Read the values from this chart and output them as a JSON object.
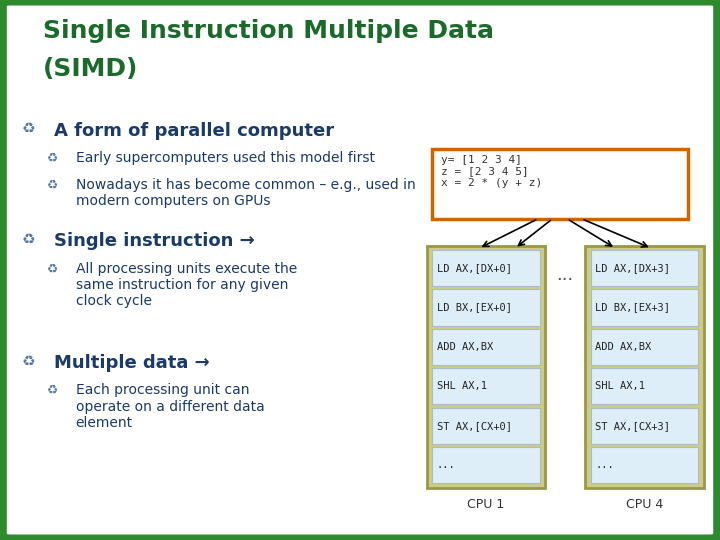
{
  "title_line1": "Single Instruction Multiple Data",
  "title_line2": "(SIMD)",
  "title_color": "#1a6b2a",
  "bg_green": "#2d8a2d",
  "slide_bg": "#ffffff",
  "slide_border": "#2d8a2d",
  "bullet_color": "#5577aa",
  "text_color": "#1a3a6a",
  "main_bullet_color": "#5577aa",
  "main_bullets": [
    "A form of parallel computer",
    "Single instruction →",
    "Multiple data →"
  ],
  "sub_bullets_0": [
    "Early supercomputers used this model first",
    "Nowadays it has become common – e.g., used in\nmodern computers on GPUs"
  ],
  "sub_bullets_1": [
    "All processing units execute the\nsame instruction for any given\nclock cycle"
  ],
  "sub_bullets_2": [
    "Each processing unit can\noperate on a different data\nelement"
  ],
  "code_box_text": "y= [1 2 3 4]\nz = [2 3 4 5]\nx = 2 * (y + z)",
  "code_box_border": "#cc6600",
  "code_box_bg": "#ffffff",
  "cpu1_label": "CPU 1",
  "cpu4_label": "CPU 4",
  "cpu_border": "#999944",
  "cpu_cell_bg": "#ddeef8",
  "cpu_cell_border": "#aabbcc",
  "cpu1_instructions": [
    "LD AX,[DX+0]",
    "LD BX,[EX+0]",
    "ADD AX,BX",
    "SHL AX,1",
    "ST AX,[CX+0]",
    "..."
  ],
  "cpu4_instructions": [
    "LD AX,[DX+3]",
    "LD BX,[EX+3]",
    "ADD AX,BX",
    "SHL AX,1",
    "ST AX,[CX+3]",
    "..."
  ],
  "dots_between": "..."
}
